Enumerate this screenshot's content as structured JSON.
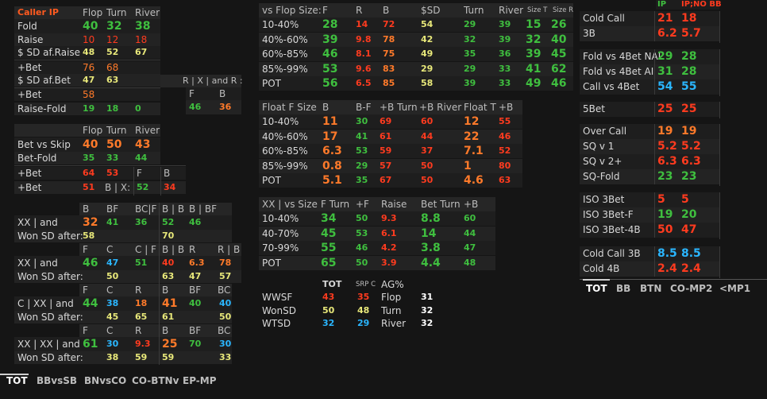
{
  "left": {
    "header": {
      "title": "Caller IP",
      "flop": "Flop",
      "turn": "Turn",
      "river": "River"
    },
    "rows": [
      {
        "label": "Fold",
        "flop": "40",
        "turn": "32",
        "river": "38"
      },
      {
        "label": "Raise",
        "flop": "10",
        "turn": "12",
        "river": "18"
      },
      {
        "label": "$ SD af.Raise",
        "flop": "48",
        "turn": "52",
        "river": "67"
      },
      {
        "label": "+Bet",
        "flop": "76",
        "turn": "68"
      },
      {
        "label": "$ SD af.Bet",
        "flop": "47",
        "turn": "63"
      },
      {
        "label": "+Bet",
        "flop": "58"
      },
      {
        "label": "Raise-Fold",
        "flop": "19",
        "turn": "18",
        "river": "0"
      }
    ],
    "rx_title": "R | X | and R :",
    "rx": {
      "f": "F",
      "b": "B",
      "fv": "46",
      "bv": "36"
    },
    "g2": {
      "hflop": "Flop",
      "hturn": "Turn",
      "hriver": "River",
      "rows": [
        {
          "label": "Bet vs Skip",
          "flop": "40",
          "turn": "50",
          "river": "43"
        },
        {
          "label": "Bet-Fold",
          "flop": "35",
          "turn": "33",
          "river": "44"
        },
        {
          "label": "+Bet",
          "flop": "64",
          "turn": "53",
          "x1": "F",
          "x2": "B"
        },
        {
          "label": "+Bet",
          "flop": "51",
          "turn": "B | X:",
          "x1": "52",
          "x2": "34"
        }
      ]
    },
    "g3": {
      "b1": {
        "h": [
          "B",
          "BF",
          "BC|F",
          "B | B",
          "B | BF"
        ],
        "label": "XX | and",
        "v": [
          "32",
          "41",
          "36",
          "52",
          "46"
        ],
        "label2": "Won SD after:",
        "w": [
          "58",
          "",
          "",
          "70",
          ""
        ]
      },
      "b2": {
        "h": [
          "F",
          "C",
          "C | F",
          "B | B",
          "R",
          "R | B"
        ],
        "label": "XX | and",
        "v": [
          "46",
          "47",
          "51",
          "40",
          "6.3",
          "78"
        ],
        "label2": "Won SD after:",
        "w": [
          "",
          "50",
          "",
          "63",
          "47",
          "57"
        ]
      },
      "b3": {
        "h": [
          "F",
          "C",
          "R",
          "B",
          "BF",
          "BC"
        ],
        "label": "C | XX | and",
        "v": [
          "44",
          "38",
          "18",
          "41",
          "40",
          "40"
        ],
        "label2": "Won SD after:",
        "w": [
          "",
          "45",
          "65",
          "61",
          "",
          "50"
        ]
      },
      "b4": {
        "h": [
          "F",
          "C",
          "R",
          "B",
          "BF",
          "BC"
        ],
        "label": "XX | XX | and",
        "v": [
          "61",
          "30",
          "9.3",
          "25",
          "70",
          "30"
        ],
        "label2": "Won SD after:",
        "w": [
          "",
          "38",
          "59",
          "59",
          "",
          "33"
        ]
      }
    }
  },
  "mid": {
    "t1": {
      "h": [
        "vs Flop Size:",
        "F",
        "R",
        "B",
        "$SD",
        "Turn",
        "River",
        "Size T",
        "Size R"
      ],
      "rows": [
        [
          "10-40%",
          "28",
          "14",
          "72",
          "54",
          "29",
          "39",
          "15",
          "26"
        ],
        [
          "40%-60%",
          "39",
          "9.8",
          "78",
          "42",
          "32",
          "39",
          "32",
          "40"
        ],
        [
          "60%-85%",
          "46",
          "8.1",
          "75",
          "49",
          "35",
          "36",
          "39",
          "45"
        ],
        [
          "85%-99%",
          "53",
          "9.6",
          "83",
          "29",
          "29",
          "33",
          "41",
          "62"
        ],
        [
          "POT",
          "56",
          "6.5",
          "85",
          "58",
          "39",
          "33",
          "49",
          "46"
        ]
      ]
    },
    "t2": {
      "h": [
        "Float F Size",
        "B",
        "B-F",
        "+B Turn",
        "+B River",
        "Float T",
        "+B"
      ],
      "rows": [
        [
          "10-40%",
          "11",
          "30",
          "69",
          "60",
          "12",
          "55"
        ],
        [
          "40%-60%",
          "17",
          "41",
          "61",
          "44",
          "22",
          "46"
        ],
        [
          "60%-85%",
          "6.3",
          "53",
          "59",
          "37",
          "7.1",
          "52"
        ],
        [
          "85%-99%",
          "0.8",
          "29",
          "57",
          "50",
          "1",
          "80"
        ],
        [
          "POT",
          "5.1",
          "35",
          "67",
          "50",
          "4.6",
          "63"
        ]
      ]
    },
    "t3": {
      "h": [
        "XX | vs Size",
        "F Turn",
        "+F",
        "Raise",
        "Bet Turn",
        "+B"
      ],
      "rows": [
        [
          "10-40%",
          "34",
          "50",
          "9.3",
          "8.8",
          "60"
        ],
        [
          "40-70%",
          "45",
          "53",
          "6.1",
          "14",
          "44"
        ],
        [
          "70-99%",
          "55",
          "46",
          "4.2",
          "3.8",
          "47"
        ],
        [
          "POT",
          "65",
          "50",
          "3.9",
          "4.4",
          "48"
        ]
      ]
    },
    "t4": {
      "h": [
        "TOT",
        "SRP C",
        "AG%"
      ],
      "rows": [
        [
          "WWSF",
          "43",
          "35",
          "Flop",
          "31"
        ],
        [
          "WonSD",
          "50",
          "48",
          "Turn",
          "32"
        ],
        [
          "WTSD",
          "32",
          "29",
          "River",
          "32"
        ]
      ]
    }
  },
  "right": {
    "h": {
      "ip": "IP",
      "ipnobb": "IP;NO BB"
    },
    "groups": [
      [
        [
          "Cold Call",
          "21",
          "18"
        ],
        [
          "3B",
          "6.2",
          "5.7"
        ]
      ],
      [
        [
          "Fold vs 4Bet NAI",
          "29",
          "28"
        ],
        [
          "Fold vs 4Bet AI",
          "31",
          "28"
        ],
        [
          "Call vs 4Bet",
          "54",
          "55"
        ]
      ],
      [
        [
          "5Bet",
          "25",
          "25"
        ]
      ],
      [
        [
          "Over Call",
          "19",
          "19"
        ],
        [
          "SQ v 1",
          "5.2",
          "5.2"
        ],
        [
          "SQ v 2+",
          "6.3",
          "6.3"
        ],
        [
          "SQ-Fold",
          "23",
          "23"
        ]
      ],
      [
        [
          "ISO 3Bet",
          "5",
          "5"
        ],
        [
          "ISO 3Bet-F",
          "19",
          "20"
        ],
        [
          "ISO 3Bet-4B",
          "50",
          "47"
        ]
      ],
      [
        [
          "Cold Call 3B",
          "8.5",
          "8.5"
        ],
        [
          "Cold 4B",
          "2.4",
          "2.4"
        ]
      ]
    ],
    "tabs": [
      "TOT",
      "BB",
      "BTN",
      "CO-MP2",
      "<MP1"
    ]
  },
  "bottom_tabs": [
    "TOT",
    "BBvsSB",
    "BNvsCO",
    "CO-BTNv",
    "EP-MP"
  ]
}
